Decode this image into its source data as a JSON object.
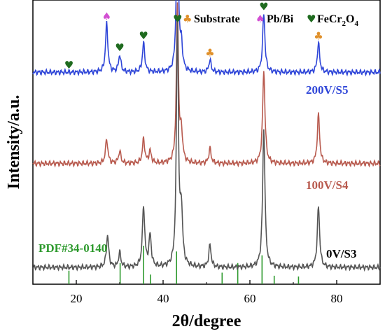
{
  "chart_data": {
    "type": "line",
    "xlabel": "2θ/degree",
    "ylabel": "Intensity/a.u.",
    "xlim": [
      10,
      90
    ],
    "xticks": [
      20,
      40,
      60,
      80
    ],
    "yticks_shown": false,
    "grid": false,
    "legend": {
      "placement": "top-right",
      "entries": [
        {
          "symbol": "♥",
          "symbol2": "♣",
          "name": "Substrate"
        },
        {
          "symbol": "♠",
          "name": "Pb/Bi"
        },
        {
          "symbol": "♥",
          "name": "FeCr",
          "sub1": "2",
          "mid": "O",
          "sub2": "4"
        }
      ]
    },
    "colors": {
      "s5": "#2f46d8",
      "s4": "#b85a4e",
      "s3": "#555555",
      "ref": "#2e9a2e",
      "heart": "#1f6b1f",
      "club": "#e0902a",
      "spade": "#d24fd2"
    },
    "series": [
      {
        "name": "200V/S5",
        "baseline_frac": 0.77,
        "peaks": [
          [
            27.0,
            0.2
          ],
          [
            30.0,
            0.07
          ],
          [
            35.5,
            0.12
          ],
          [
            43.3,
            0.7
          ],
          [
            44.2,
            0.1
          ],
          [
            50.8,
            0.05
          ],
          [
            63.2,
            0.24
          ],
          [
            75.8,
            0.12
          ]
        ]
      },
      {
        "name": "100V/S4",
        "baseline_frac": 0.41,
        "peaks": [
          [
            27.0,
            0.1
          ],
          [
            30.0,
            0.05
          ],
          [
            35.5,
            0.1
          ],
          [
            37.0,
            0.05
          ],
          [
            43.3,
            0.65
          ],
          [
            44.2,
            0.12
          ],
          [
            50.8,
            0.06
          ],
          [
            63.2,
            0.38
          ],
          [
            75.8,
            0.2
          ]
        ]
      },
      {
        "name": "0V/S3",
        "baseline_frac": 0.0,
        "peaks": [
          [
            27.2,
            0.13
          ],
          [
            30.0,
            0.06
          ],
          [
            35.5,
            0.25
          ],
          [
            37.0,
            0.13
          ],
          [
            43.3,
            1.0
          ],
          [
            44.2,
            0.22
          ],
          [
            50.8,
            0.09
          ],
          [
            63.2,
            0.57
          ],
          [
            75.8,
            0.25
          ]
        ]
      }
    ],
    "reference": {
      "name": "PDF#34-0140",
      "lines": [
        [
          18.3,
          0.35
        ],
        [
          30.1,
          0.55
        ],
        [
          35.5,
          1.0
        ],
        [
          37.1,
          0.25
        ],
        [
          43.1,
          0.85
        ],
        [
          53.6,
          0.3
        ],
        [
          57.2,
          0.55
        ],
        [
          62.8,
          0.75
        ],
        [
          65.6,
          0.22
        ],
        [
          71.2,
          0.2
        ]
      ]
    },
    "markers": [
      {
        "x": 18.3,
        "series": "200V/S5",
        "symbol": "♥",
        "kind": "heart"
      },
      {
        "x": 27.0,
        "series": "200V/S5",
        "symbol": "♠",
        "kind": "spade"
      },
      {
        "x": 30.0,
        "series": "200V/S5",
        "symbol": "♥",
        "kind": "heart"
      },
      {
        "x": 35.5,
        "series": "200V/S5",
        "symbol": "♥",
        "kind": "heart"
      },
      {
        "x": 43.3,
        "series": "200V/S5",
        "symbol": "♥",
        "kind": "heart"
      },
      {
        "x": 50.8,
        "series": "200V/S5",
        "symbol": "♣",
        "kind": "club"
      },
      {
        "x": 63.2,
        "series": "200V/S5",
        "symbol": "♥",
        "kind": "heart"
      },
      {
        "x": 75.8,
        "series": "200V/S5",
        "symbol": "♣",
        "kind": "club"
      },
      {
        "x": 43.3,
        "series": "100V/S4",
        "symbol": "♣",
        "kind": "club"
      }
    ]
  }
}
